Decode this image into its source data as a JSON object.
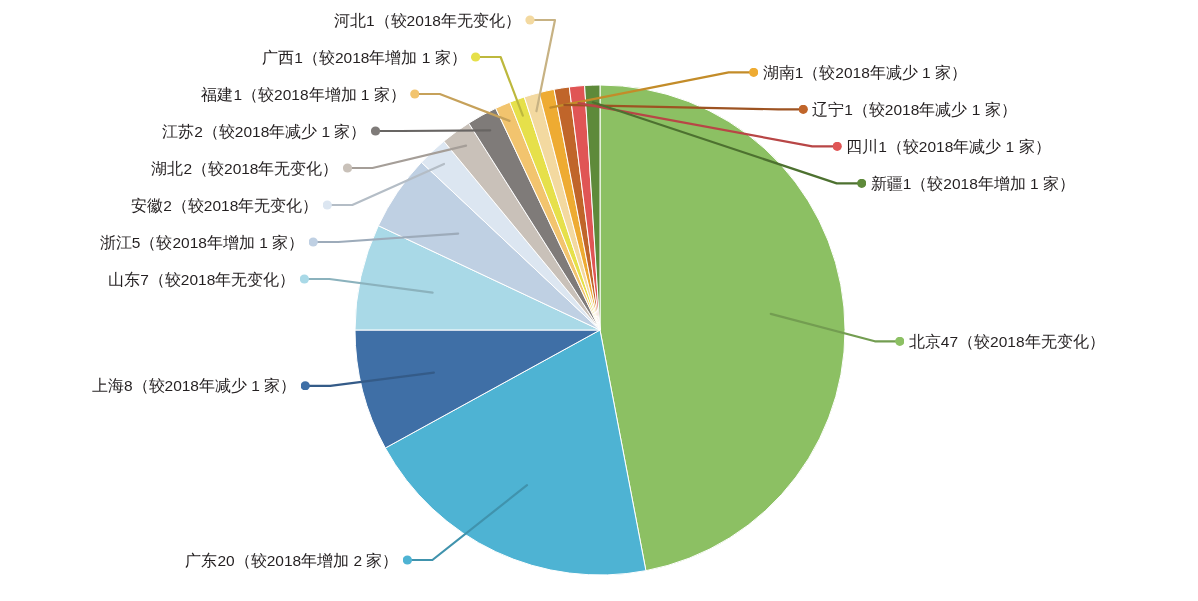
{
  "chart_data": {
    "type": "pie",
    "categories": [
      "北京47（较2018年无变化）",
      "广东20（较2018年增加 2 家）",
      "上海8（较2018年减少 1 家）",
      "山东7（较2018年无变化）",
      "浙江5（较2018年增加 1 家）",
      "安徽2（较2018年无变化）",
      "湖北2（较2018年无变化）",
      "江苏2（较2018年减少 1 家）",
      "福建1（较2018年增加 1 家）",
      "广西1（较2018年增加 1 家）",
      "河北1（较2018年无变化）",
      "湖南1（较2018年减少 1 家）",
      "辽宁1（较2018年减少 1 家）",
      "四川1（较2018年减少 1 家）",
      "新疆1（较2018年增加 1 家）"
    ],
    "values": [
      47,
      20,
      8,
      7,
      5,
      2,
      2,
      2,
      1,
      1,
      1,
      1,
      1,
      1,
      1
    ],
    "colors": [
      "#8cc063",
      "#4eb3d3",
      "#3f6fa6",
      "#a9d9e7",
      "#bfd0e3",
      "#dce6f1",
      "#c9c1b9",
      "#7f7b79",
      "#f2c46e",
      "#e6e04a",
      "#f3d9a0",
      "#eeab32",
      "#c0652a",
      "#e05555",
      "#5e8a3a"
    ]
  }
}
